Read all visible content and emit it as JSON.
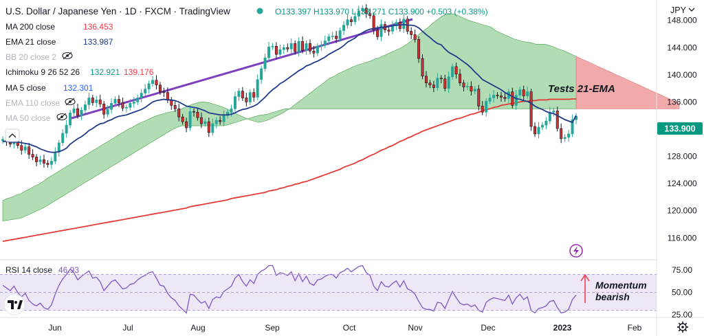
{
  "header": {
    "symbol": "U.S. Dollar / Japanese Yen · 1D · FXCM · TradingView",
    "ohlc": "O133.397 H133.970 L133.271 C133.900 +0.503 (+0.38%)",
    "ohlc_color": "#089981"
  },
  "currency": "JPY",
  "indicators": [
    {
      "label": "MA 200 close",
      "value": "136.453",
      "value_color": "#f23645",
      "hidden": false
    },
    {
      "label": "EMA 21 close",
      "value": "133.987",
      "value_color": "#1e3a8a",
      "hidden": false
    },
    {
      "label": "BB 20 close 2",
      "value": "",
      "hidden": true
    },
    {
      "label": "Ichimoku 9 26 52 26",
      "value": "132.921",
      "value2": "139.176",
      "value_color": "#089981",
      "value2_color": "#f23645",
      "hidden": false
    },
    {
      "label": "MA 5 close",
      "value": "132.301",
      "value_color": "#2962ff",
      "hidden": false
    },
    {
      "label": "EMA 110 close",
      "value": "",
      "hidden": true
    },
    {
      "label": "MA 50 close",
      "value": "",
      "hidden": true
    }
  ],
  "annotations": {
    "tests": "Tests 21-EMA",
    "momentum": "Momentum\nbearish",
    "momentum_line1": "Momentum",
    "momentum_line2": "bearish"
  },
  "last_price": "133.900",
  "rsi": {
    "label": "RSI 14 close",
    "value": "46.93",
    "levels": [
      "75.00",
      "50.00",
      "25.00"
    ]
  },
  "colors": {
    "candle_up": "#26a69a",
    "ema21": "#1e3a8a",
    "ma200": "#e53935",
    "trendline": "#7e3fbf",
    "cloud_bull": "#a5d6a7",
    "cloud_bear": "#ef9a9a",
    "rsi_line": "#7e57c2",
    "rsi_band": "#ede7f6",
    "last_price_bg": "#089981"
  },
  "chart_data": {
    "type": "candlestick",
    "x_ticks": [
      "Jun",
      "Jul",
      "Aug",
      "Sep",
      "Oct",
      "Nov",
      "Dec",
      "2023",
      "Feb"
    ],
    "y_ticks": [
      "148.000",
      "144.000",
      "140.000",
      "136.000",
      "132.000",
      "128.000",
      "124.000",
      "120.000",
      "116.000"
    ],
    "ylim": [
      113.0,
      151.0
    ],
    "rsi_ylim": [
      22,
      85
    ],
    "close": [
      130.5,
      130.2,
      129.8,
      130.4,
      129.6,
      128.9,
      129.4,
      128.3,
      127.9,
      127.2,
      127.5,
      127.0,
      126.8,
      127.3,
      128.6,
      130.0,
      131.4,
      132.6,
      134.4,
      135.0,
      134.0,
      134.8,
      135.6,
      136.6,
      135.9,
      136.3,
      135.7,
      134.2,
      134.9,
      135.8,
      136.4,
      135.9,
      135.1,
      135.2,
      135.8,
      136.0,
      136.6,
      137.3,
      137.9,
      138.7,
      139.2,
      138.5,
      137.5,
      137.4,
      136.3,
      135.5,
      135.0,
      133.8,
      133.1,
      132.2,
      134.6,
      134.5,
      133.7,
      132.8,
      133.1,
      131.5,
      132.8,
      133.3,
      133.1,
      134.0,
      134.5,
      135.0,
      136.8,
      137.6,
      136.6,
      136.0,
      137.4,
      136.7,
      139.3,
      140.9,
      142.5,
      144.1,
      144.2,
      143.0,
      143.7,
      144.0,
      143.8,
      144.6,
      143.4,
      144.9,
      143.6,
      144.6,
      143.5,
      143.2,
      144.2,
      144.4,
      145.0,
      145.6,
      145.7,
      145.3,
      146.5,
      147.3,
      148.1,
      147.8,
      148.6,
      149.4,
      149.8,
      149.0,
      148.7,
      146.6,
      145.6,
      147.4,
      146.6,
      146.4,
      147.2,
      147.7,
      146.8,
      148.2,
      146.4,
      145.9,
      145.2,
      142.4,
      139.8,
      138.8,
      138.5,
      138.1,
      139.5,
      139.4,
      138.0,
      139.7,
      141.2,
      140.1,
      138.8,
      138.2,
      138.3,
      137.6,
      137.9,
      135.4,
      134.5,
      136.1,
      136.6,
      137.0,
      136.9,
      136.7,
      136.5,
      137.5,
      135.5,
      137.0,
      137.8,
      136.9,
      137.5,
      132.4,
      131.3,
      132.3,
      132.6,
      133.2,
      134.5,
      134.7,
      132.1,
      130.6,
      130.8,
      131.3,
      133.4,
      133.9
    ],
    "ema21": [
      130.2,
      130.2,
      130.1,
      130.1,
      130.1,
      130.0,
      129.9,
      129.8,
      129.6,
      129.4,
      129.1,
      128.9,
      128.7,
      128.6,
      128.6,
      128.7,
      128.9,
      129.2,
      129.8,
      130.2,
      130.6,
      130.9,
      131.3,
      131.8,
      132.1,
      132.5,
      132.8,
      132.9,
      133.2,
      133.4,
      133.7,
      133.9,
      134.0,
      134.1,
      134.3,
      134.5,
      134.7,
      134.9,
      135.2,
      135.6,
      136.0,
      136.2,
      136.3,
      136.4,
      136.3,
      136.3,
      136.2,
      136.0,
      135.7,
      135.4,
      135.3,
      135.2,
      135.1,
      134.9,
      134.7,
      134.4,
      134.3,
      134.2,
      134.1,
      134.1,
      134.1,
      134.2,
      134.4,
      134.7,
      134.9,
      135.0,
      135.2,
      135.4,
      135.7,
      136.2,
      136.7,
      137.3,
      137.8,
      138.2,
      138.7,
      139.0,
      139.4,
      139.8,
      140.2,
      140.6,
      140.9,
      141.3,
      141.5,
      141.8,
      142.0,
      142.3,
      142.6,
      143.0,
      143.3,
      143.6,
      143.9,
      144.3,
      144.8,
      145.1,
      145.4,
      145.9,
      146.2,
      146.5,
      146.7,
      146.8,
      146.9,
      147.0,
      147.0,
      147.1,
      147.2,
      147.3,
      147.3,
      147.4,
      147.3,
      147.3,
      147.2,
      146.9,
      146.4,
      145.9,
      145.5,
      145.0,
      144.6,
      144.4,
      143.8,
      143.3,
      143.0,
      142.7,
      142.3,
      141.9,
      141.5,
      141.0,
      140.4,
      139.9,
      139.3,
      139.0,
      138.7,
      138.4,
      138.1,
      137.8,
      137.4,
      137.1,
      136.8,
      136.5,
      136.4,
      136.2,
      136.1,
      135.8,
      135.4,
      135.1,
      134.9,
      134.6,
      134.4,
      134.3,
      134.0,
      133.7,
      133.4,
      133.2,
      133.0,
      134.0
    ],
    "ma200": [
      115.5,
      115.6,
      115.7,
      115.8,
      115.9,
      116.0,
      116.1,
      116.2,
      116.3,
      116.4,
      116.5,
      116.6,
      116.7,
      116.8,
      116.9,
      117.0,
      117.1,
      117.2,
      117.3,
      117.4,
      117.5,
      117.6,
      117.7,
      117.8,
      117.9,
      118.0,
      118.1,
      118.2,
      118.3,
      118.4,
      118.5,
      118.6,
      118.7,
      118.8,
      118.9,
      119.0,
      119.1,
      119.2,
      119.3,
      119.4,
      119.5,
      119.6,
      119.7,
      119.8,
      119.9,
      120.0,
      120.1,
      120.2,
      120.3,
      120.4,
      120.6,
      120.7,
      120.8,
      120.9,
      121.0,
      121.1,
      121.2,
      121.3,
      121.4,
      121.5,
      121.6,
      121.8,
      121.9,
      122.0,
      122.1,
      122.2,
      122.3,
      122.4,
      122.5,
      122.6,
      122.7,
      122.9,
      123.0,
      123.1,
      123.3,
      123.4,
      123.6,
      123.7,
      123.9,
      124.0,
      124.2,
      124.3,
      124.5,
      124.7,
      124.9,
      125.1,
      125.3,
      125.5,
      125.7,
      125.9,
      126.1,
      126.4,
      126.6,
      126.8,
      127.0,
      127.3,
      127.5,
      127.8,
      128.1,
      128.3,
      128.6,
      128.9,
      129.1,
      129.4,
      129.6,
      129.9,
      130.2,
      130.4,
      130.7,
      130.9,
      131.2,
      131.4,
      131.7,
      131.9,
      132.1,
      132.3,
      132.5,
      132.7,
      132.9,
      133.1,
      133.3,
      133.5,
      133.6,
      133.8,
      134.0,
      134.2,
      134.3,
      134.5,
      134.7,
      134.9,
      135.0,
      135.2,
      135.3,
      135.5,
      135.6,
      135.7,
      135.8,
      135.9,
      136.0,
      136.1,
      136.1,
      136.2,
      136.2,
      136.3,
      136.3,
      136.3,
      136.4,
      136.4,
      136.4,
      136.4,
      136.4,
      136.4,
      136.45,
      136.45
    ],
    "rsi": [
      58,
      55,
      52,
      57,
      50,
      45,
      49,
      41,
      37,
      35,
      38,
      33,
      31,
      36,
      48,
      58,
      65,
      70,
      76,
      72,
      64,
      68,
      71,
      74,
      66,
      67,
      62,
      52,
      57,
      62,
      64,
      59,
      54,
      55,
      59,
      60,
      64,
      67,
      69,
      72,
      73,
      66,
      58,
      57,
      49,
      44,
      41,
      35,
      31,
      27,
      48,
      47,
      42,
      38,
      40,
      32,
      42,
      45,
      44,
      51,
      54,
      57,
      66,
      70,
      62,
      57,
      64,
      60,
      70,
      74,
      76,
      80,
      80,
      69,
      72,
      71,
      69,
      73,
      63,
      71,
      62,
      68,
      60,
      58,
      64,
      65,
      68,
      70,
      70,
      66,
      72,
      74,
      77,
      73,
      76,
      79,
      80,
      72,
      69,
      57,
      52,
      62,
      57,
      56,
      60,
      63,
      56,
      63,
      54,
      52,
      48,
      40,
      33,
      31,
      31,
      29,
      39,
      38,
      32,
      42,
      51,
      44,
      38,
      36,
      37,
      34,
      36,
      30,
      28,
      39,
      42,
      44,
      43,
      42,
      41,
      47,
      37,
      44,
      48,
      42,
      45,
      30,
      27,
      32,
      33,
      35,
      40,
      41,
      33,
      27,
      28,
      31,
      42,
      47
    ],
    "cloud_upper": [
      121.5,
      121.8,
      122.0,
      122.3,
      122.5,
      122.9,
      123.2,
      123.6,
      123.9,
      124.3,
      124.8,
      125.2,
      125.6,
      126.0,
      126.4,
      126.8,
      127.2,
      127.6,
      128.0,
      128.4,
      128.8,
      129.2,
      129.6,
      130.0,
      130.4,
      130.8,
      131.2,
      131.6,
      132.0,
      132.3,
      132.7,
      133.0,
      133.3,
      133.6,
      133.9,
      134.1,
      134.3,
      134.5,
      134.6,
      134.8,
      135.0,
      135.3,
      135.6,
      135.8,
      136.0,
      136.0,
      135.9,
      135.7,
      135.5,
      135.3,
      135.0,
      134.6,
      134.3,
      134.0,
      133.7,
      133.4,
      133.2,
      133.0,
      133.1,
      133.3,
      133.6,
      133.9,
      134.2,
      134.6,
      135.0,
      135.5,
      136.0,
      136.5,
      137.0,
      137.5,
      138.0,
      138.5,
      139.0,
      139.5,
      139.8,
      140.2,
      140.5,
      140.8,
      141.1,
      141.4,
      141.6,
      141.8,
      142.0,
      142.3,
      142.5,
      142.8,
      143.1,
      143.4,
      143.7,
      144.0,
      144.4,
      144.9,
      145.4,
      146.0,
      146.5,
      147.0,
      147.6,
      148.1,
      148.6,
      148.9,
      149.0,
      148.9,
      148.6,
      148.3,
      148.0,
      147.8,
      147.6,
      147.4,
      147.2,
      147.0,
      146.5,
      146.2,
      145.9,
      145.6,
      145.3,
      145.1,
      144.9,
      144.8,
      144.7,
      144.5,
      144.5,
      144.5,
      144.3,
      144.1,
      143.8,
      143.6,
      143.3,
      143.0,
      142.7,
      142.4,
      142.1,
      141.8,
      141.5,
      141.2,
      140.9,
      140.6,
      140.3,
      140.0,
      139.7,
      139.4,
      139.1,
      138.8,
      138.5,
      138.2,
      137.9,
      137.6,
      137.3,
      137.0,
      136.7,
      136.4,
      136.1,
      135.8
    ],
    "cloud_lower": [
      118.5,
      118.6,
      118.7,
      118.8,
      118.9,
      119.2,
      119.5,
      119.8,
      120.1,
      120.4,
      120.8,
      121.2,
      121.6,
      122.0,
      122.4,
      122.8,
      123.2,
      123.6,
      124.0,
      124.4,
      124.8,
      125.2,
      125.6,
      126.0,
      126.4,
      126.8,
      127.2,
      127.6,
      128.0,
      128.4,
      128.8,
      129.2,
      129.6,
      130.0,
      130.4,
      130.8,
      131.2,
      131.6,
      132.0,
      132.3,
      132.5,
      132.5,
      132.5,
      132.5,
      132.5,
      132.5,
      132.5,
      132.5,
      132.5,
      132.5,
      132.6,
      132.8,
      133.0,
      133.2,
      133.4,
      133.6,
      133.8,
      134.0,
      134.1,
      134.2,
      134.4,
      134.6,
      134.8,
      135.0,
      135.0,
      135.0,
      135.0,
      135.0,
      135.0,
      135.0,
      135.0,
      135.0,
      135.0,
      135.0,
      135.0,
      135.0,
      135.0,
      135.0,
      135.0,
      135.0,
      135.0,
      135.0,
      135.0,
      135.0,
      135.0,
      135.0,
      135.0,
      135.0,
      135.0,
      135.0,
      135.0,
      135.0,
      135.0,
      135.0,
      135.0,
      135.0,
      135.0,
      135.0,
      135.0,
      135.0,
      135.0,
      135.0,
      135.0,
      135.0,
      135.0,
      135.0,
      135.0,
      135.0,
      135.0,
      135.0,
      135.0,
      135.0,
      135.0,
      135.0,
      135.0,
      135.0,
      135.0,
      135.0,
      135.0,
      135.0,
      135.0,
      135.0,
      135.0,
      135.0,
      135.0,
      135.0,
      135.0,
      135.0,
      135.0,
      135.0,
      135.0,
      135.0,
      135.0,
      135.0,
      135.0,
      135.0,
      135.0,
      135.0,
      135.0,
      135.0,
      135.0,
      135.0,
      135.0,
      135.0,
      135.0,
      135.0,
      135.0,
      135.0,
      135.0,
      135.0,
      135.0,
      135.0
    ]
  }
}
